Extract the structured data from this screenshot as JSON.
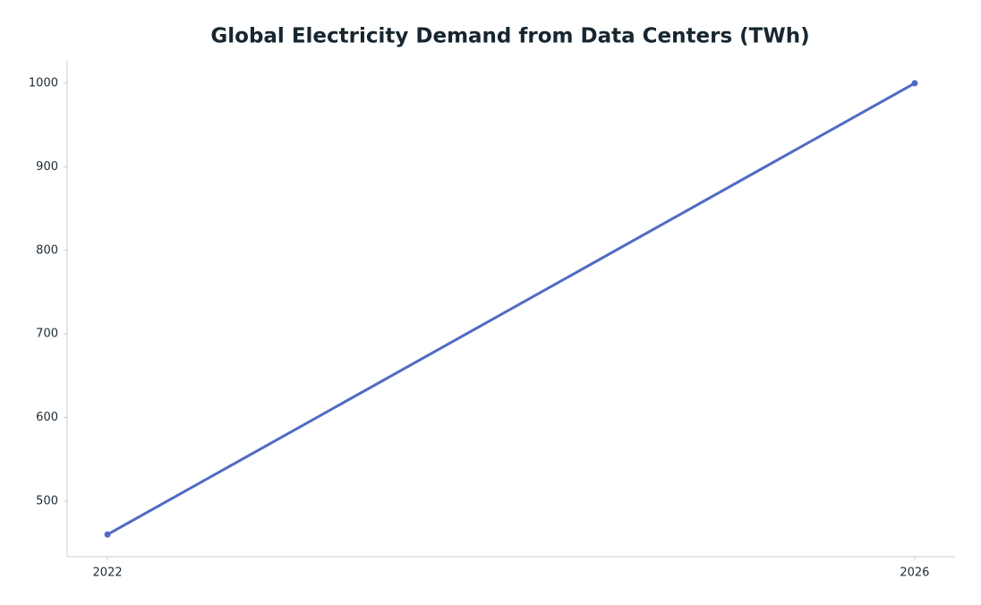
{
  "chart_data": {
    "type": "line",
    "title": "Global Electricity Demand from Data Centers (TWh)",
    "x": [
      2022,
      2026
    ],
    "values": [
      460,
      1000
    ],
    "color": "#4f6bc4",
    "xlim": [
      2021.8,
      2026.2
    ],
    "xticks": [
      2022,
      2026
    ],
    "ylim": [
      433.5,
      1026.8
    ],
    "yticks": [
      500,
      600,
      700,
      800,
      900,
      1000
    ],
    "grid": false
  }
}
